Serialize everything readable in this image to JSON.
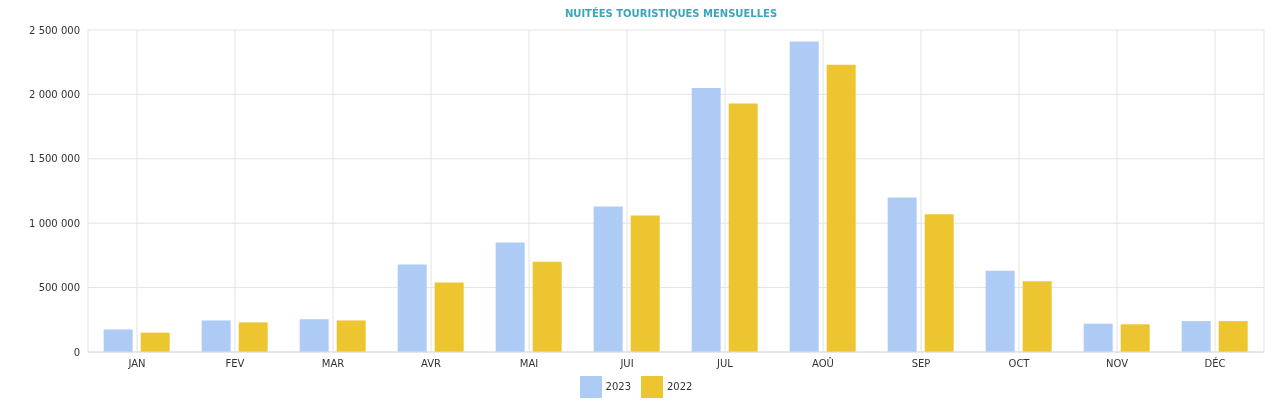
{
  "chart_data": {
    "type": "bar",
    "title": "NUITÉES TOURISTIQUES MENSUELLES",
    "categories": [
      "JAN",
      "FEV",
      "MAR",
      "AVR",
      "MAI",
      "JUI",
      "JUL",
      "AOÛ",
      "SEP",
      "OCT",
      "NOV",
      "DÉC"
    ],
    "series": [
      {
        "name": "2023",
        "color": "#aecbf5",
        "values": [
          175000,
          245000,
          255000,
          680000,
          850000,
          1130000,
          2050000,
          2410000,
          1200000,
          630000,
          220000,
          240000
        ]
      },
      {
        "name": "2022",
        "color": "#edc531",
        "values": [
          150000,
          230000,
          245000,
          540000,
          700000,
          1060000,
          1930000,
          2230000,
          1070000,
          550000,
          215000,
          240000
        ]
      }
    ],
    "ylim": [
      0,
      2500000
    ],
    "yticks": [
      0,
      500000,
      1000000,
      1500000,
      2000000,
      2500000
    ],
    "grid": true,
    "legend": "bottom"
  }
}
